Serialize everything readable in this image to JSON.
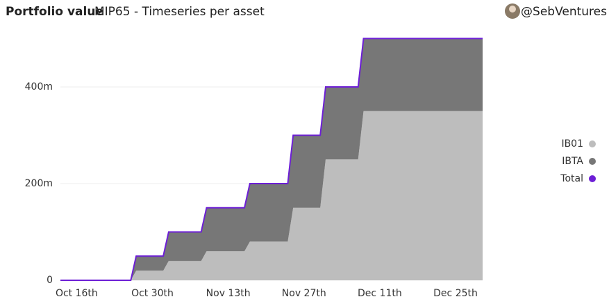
{
  "chart_data": {
    "type": "stacked-area",
    "title": "Portfolio value",
    "subtitle": "MIP65 - Timeseries per asset",
    "author": "@SebVentures",
    "categories": [
      null,
      null,
      null,
      "Oct 16th",
      null,
      null,
      null,
      null,
      null,
      null,
      null,
      null,
      null,
      null,
      null,
      null,
      null,
      "Oct 30th",
      null,
      null,
      null,
      null,
      null,
      null,
      null,
      null,
      null,
      null,
      null,
      null,
      null,
      "Nov 13th",
      null,
      null,
      null,
      null,
      null,
      null,
      null,
      null,
      null,
      null,
      null,
      null,
      null,
      "Nov 27th",
      null,
      null,
      null,
      null,
      null,
      null,
      null,
      null,
      null,
      null,
      null,
      null,
      null,
      "Dec 11th",
      null,
      null,
      null,
      null,
      null,
      null,
      null,
      null,
      null,
      null,
      null,
      null,
      null,
      "Dec 25th",
      null,
      null,
      null,
      null,
      null
    ],
    "series": [
      {
        "name": "IB01",
        "color": "#bdbdbd",
        "values": [
          0,
          0,
          0,
          0,
          0,
          0,
          0,
          0,
          0,
          0,
          0,
          0,
          0,
          0,
          20,
          20,
          20,
          20,
          20,
          20,
          40,
          40,
          40,
          40,
          40,
          40,
          40,
          60,
          60,
          60,
          60,
          60,
          60,
          60,
          60,
          80,
          80,
          80,
          80,
          80,
          80,
          80,
          80,
          150,
          150,
          150,
          150,
          150,
          150,
          250,
          250,
          250,
          250,
          250,
          250,
          250,
          350,
          350,
          350,
          350,
          350,
          350,
          350,
          350,
          350,
          350,
          350,
          350,
          350,
          350,
          350,
          350,
          350,
          350,
          350,
          350,
          350,
          350,
          350
        ]
      },
      {
        "name": "IBTA",
        "color": "#777777",
        "values": [
          0,
          0,
          0,
          0,
          0,
          0,
          0,
          0,
          0,
          0,
          0,
          0,
          0,
          0,
          30,
          30,
          30,
          30,
          30,
          30,
          60,
          60,
          60,
          60,
          60,
          60,
          60,
          90,
          90,
          90,
          90,
          90,
          90,
          90,
          90,
          120,
          120,
          120,
          120,
          120,
          120,
          120,
          120,
          150,
          150,
          150,
          150,
          150,
          150,
          150,
          150,
          150,
          150,
          150,
          150,
          150,
          150,
          150,
          150,
          150,
          150,
          150,
          150,
          150,
          150,
          150,
          150,
          150,
          150,
          150,
          150,
          150,
          150,
          150,
          150,
          150,
          150,
          150,
          150
        ]
      },
      {
        "name": "Total",
        "color": "#6d1fd6",
        "line": true,
        "values": [
          0,
          0,
          0,
          0,
          0,
          0,
          0,
          0,
          0,
          0,
          0,
          0,
          0,
          0,
          50,
          50,
          50,
          50,
          50,
          50,
          100,
          100,
          100,
          100,
          100,
          100,
          100,
          150,
          150,
          150,
          150,
          150,
          150,
          150,
          150,
          200,
          200,
          200,
          200,
          200,
          200,
          200,
          200,
          300,
          300,
          300,
          300,
          300,
          300,
          400,
          400,
          400,
          400,
          400,
          400,
          400,
          500,
          500,
          500,
          500,
          500,
          500,
          500,
          500,
          500,
          500,
          500,
          500,
          500,
          500,
          500,
          500,
          500,
          500,
          500,
          500,
          500,
          500,
          500
        ]
      }
    ],
    "ylim": [
      0,
      515
    ],
    "yticks": [
      0,
      {
        "value": 200,
        "label": "200m"
      },
      {
        "value": 400,
        "label": "400m"
      }
    ],
    "grid": true
  }
}
